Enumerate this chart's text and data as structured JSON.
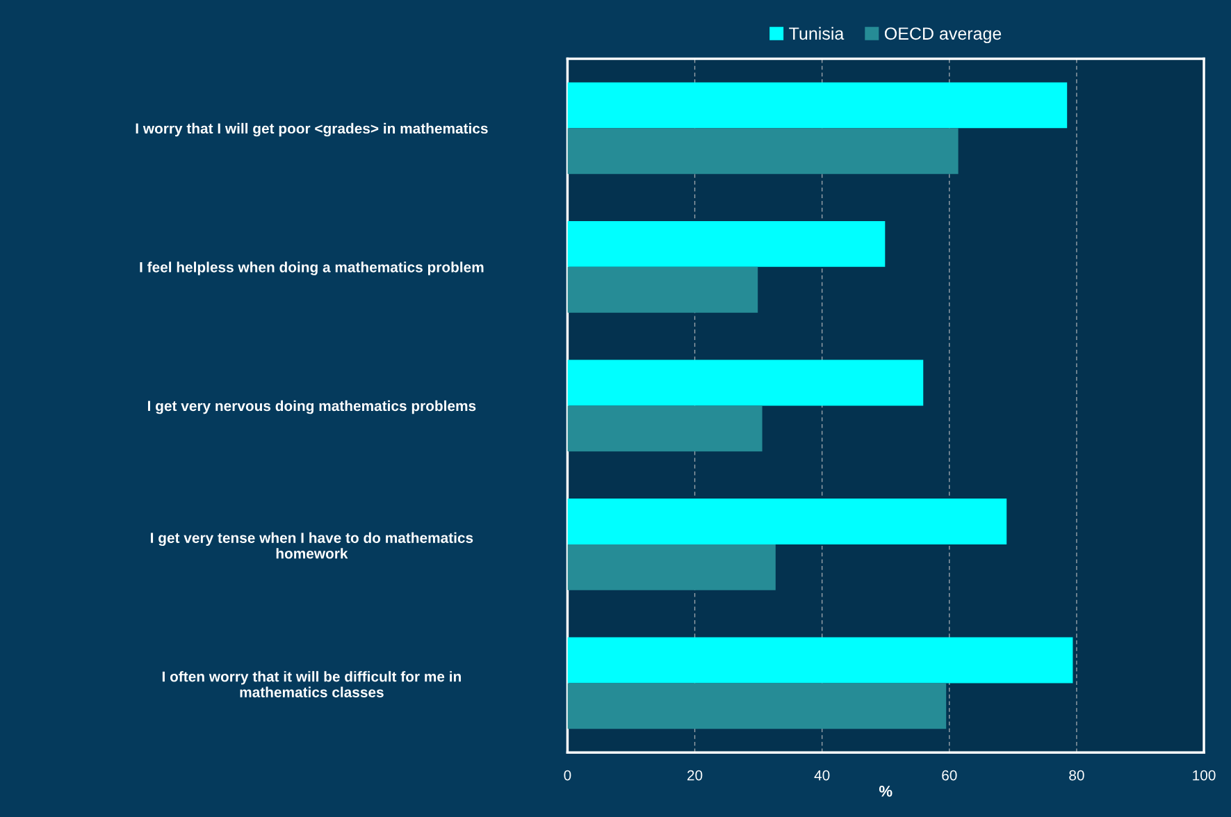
{
  "chart_data": {
    "type": "bar",
    "orientation": "horizontal",
    "xlabel": "%",
    "categories": [
      "I worry that I will get poor <grades> in mathematics",
      "I feel helpless when doing a mathematics problem",
      "I get very nervous doing mathematics problems",
      "I get very tense when I have to do mathematics\nhomework",
      "I often worry that it will be difficult for me in\nmathematics classes"
    ],
    "series": [
      {
        "name": "Tunisia",
        "color": "#00ffff",
        "values": [
          78.5,
          49.9,
          55.9,
          69.0,
          79.4
        ]
      },
      {
        "name": "OECD average",
        "color": "#268c96",
        "values": [
          61.4,
          29.9,
          30.6,
          32.7,
          59.5
        ]
      }
    ],
    "xlim": [
      0,
      100
    ],
    "xticks": [
      0,
      20,
      40,
      60,
      80,
      100
    ],
    "grid": "x",
    "legend": "top"
  }
}
